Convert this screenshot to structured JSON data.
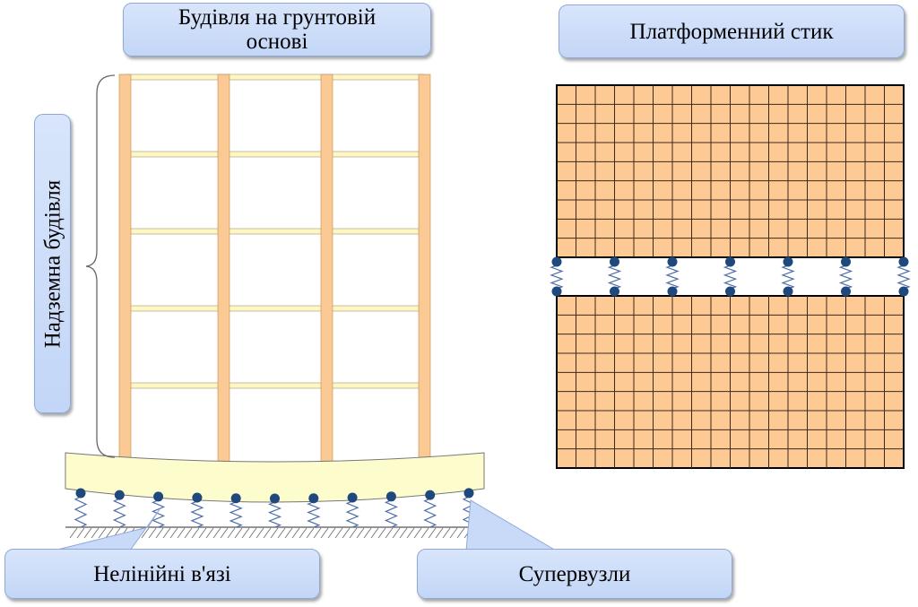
{
  "labels": {
    "building_title": "Будівля на грунтовій основі",
    "joint_title": "Платформенний стик",
    "above_ground": "Надземна будівля",
    "nonlinear_links": "Нелінійні в'язі",
    "supernodes": "Супервузли"
  },
  "colors": {
    "column": "#fbc994",
    "beam": "#fff6c2",
    "foundation": "#fdfccc",
    "panel": "#fdc994",
    "node": "#1f487c",
    "spring": "#4f6fa8",
    "callout": "#c9daf8"
  },
  "grid": {
    "columns": 18,
    "rows_per_panel": 9,
    "joint_springs": 7
  },
  "building": {
    "columns": 4,
    "floors": 5,
    "foundation_springs": 11
  }
}
